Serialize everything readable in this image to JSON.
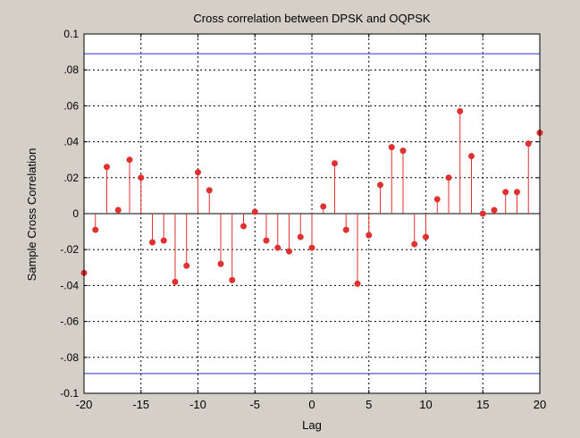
{
  "chart_data": {
    "type": "stem",
    "title": "Cross correlation between DPSK and OQPSK",
    "xlabel": "Lag",
    "ylabel": "Sample Cross Correlation",
    "xlim": [
      -20,
      20
    ],
    "ylim": [
      -0.1,
      0.1
    ],
    "xticks": [
      -20,
      -15,
      -10,
      -5,
      0,
      5,
      10,
      15,
      20
    ],
    "yticks": [
      -0.1,
      -0.08,
      -0.06,
      -0.04,
      -0.02,
      0,
      0.02,
      0.04,
      0.06,
      0.08,
      0.1
    ],
    "grid": true,
    "confidence_bounds": [
      0.089,
      -0.089
    ],
    "colors": {
      "stem": "#e03030",
      "bounds": "#3030d0",
      "zero": "#000000"
    },
    "x": [
      -20,
      -19,
      -18,
      -17,
      -16,
      -15,
      -14,
      -13,
      -12,
      -11,
      -10,
      -9,
      -8,
      -7,
      -6,
      -5,
      -4,
      -3,
      -2,
      -1,
      0,
      1,
      2,
      3,
      4,
      5,
      6,
      7,
      8,
      9,
      10,
      11,
      12,
      13,
      14,
      15,
      16,
      17,
      18,
      19,
      20
    ],
    "values": [
      -0.033,
      -0.009,
      0.026,
      0.002,
      0.03,
      0.02,
      -0.016,
      -0.015,
      -0.038,
      -0.029,
      0.023,
      0.013,
      -0.028,
      -0.037,
      -0.007,
      0.001,
      -0.015,
      -0.019,
      -0.021,
      -0.013,
      -0.019,
      0.004,
      0.028,
      -0.009,
      -0.039,
      -0.012,
      0.016,
      0.037,
      0.035,
      -0.017,
      -0.013,
      0.008,
      0.02,
      0.057,
      0.032,
      0.0,
      0.002,
      0.012,
      0.012,
      0.039,
      0.045
    ]
  }
}
